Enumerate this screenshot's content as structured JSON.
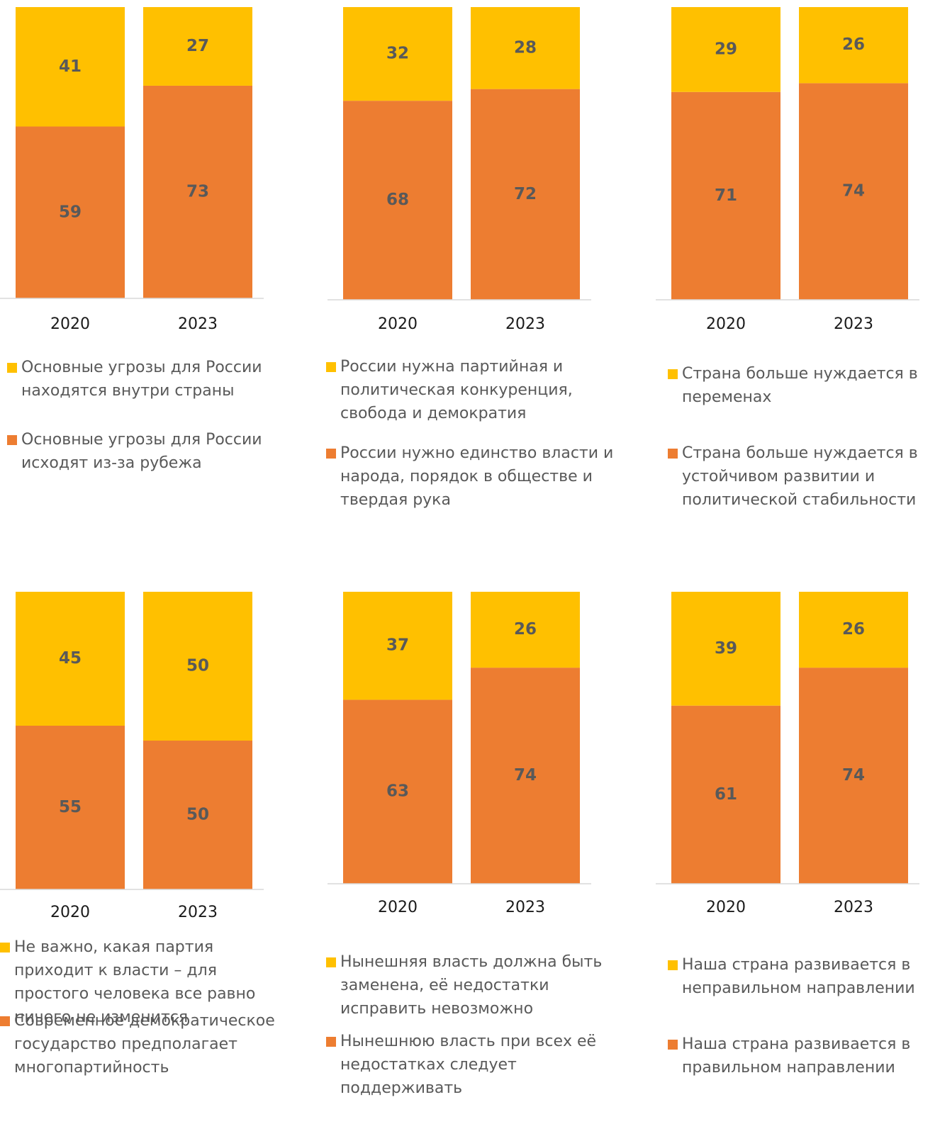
{
  "chart_data": [
    {
      "type": "bar",
      "stacked": true,
      "categories": [
        "2020",
        "2023"
      ],
      "ylim": [
        0,
        100
      ],
      "series": [
        {
          "name": "Основные угрозы для России исходят из-за рубежа",
          "color": "#ed7d31",
          "values": [
            59,
            73
          ]
        },
        {
          "name": "Основные угрозы для России находятся внутри страны",
          "color": "#ffc000",
          "values": [
            41,
            27
          ]
        }
      ]
    },
    {
      "type": "bar",
      "stacked": true,
      "categories": [
        "2020",
        "2023"
      ],
      "ylim": [
        0,
        100
      ],
      "series": [
        {
          "name": "России нужно единство власти и народа, порядок в обществе и твердая рука",
          "color": "#ed7d31",
          "values": [
            68,
            72
          ]
        },
        {
          "name": "России нужна партийная и политическая конкуренция, свобода и демократия",
          "color": "#ffc000",
          "values": [
            32,
            28
          ]
        }
      ]
    },
    {
      "type": "bar",
      "stacked": true,
      "categories": [
        "2020",
        "2023"
      ],
      "ylim": [
        0,
        100
      ],
      "series": [
        {
          "name": "Страна больше нуждается в устойчивом развитии и политической стабильности",
          "color": "#ed7d31",
          "values": [
            71,
            74
          ]
        },
        {
          "name": "Страна больше нуждается в переменах",
          "color": "#ffc000",
          "values": [
            29,
            26
          ]
        }
      ]
    },
    {
      "type": "bar",
      "stacked": true,
      "categories": [
        "2020",
        "2023"
      ],
      "ylim": [
        0,
        100
      ],
      "series": [
        {
          "name": "Современное демократическое государство предполагает многопартийность",
          "color": "#ed7d31",
          "values": [
            55,
            50
          ]
        },
        {
          "name": "Не важно, какая партия приходит к власти – для простого человека все равно ничего не изменится",
          "color": "#ffc000",
          "values": [
            45,
            50
          ]
        }
      ]
    },
    {
      "type": "bar",
      "stacked": true,
      "categories": [
        "2020",
        "2023"
      ],
      "ylim": [
        0,
        100
      ],
      "series": [
        {
          "name": "Нынешнюю власть при всех её недостатках следует поддерживать",
          "color": "#ed7d31",
          "values": [
            63,
            74
          ]
        },
        {
          "name": "Нынешняя власть должна быть заменена, её недостатки исправить невозможно",
          "color": "#ffc000",
          "values": [
            37,
            26
          ]
        }
      ]
    },
    {
      "type": "bar",
      "stacked": true,
      "categories": [
        "2020",
        "2023"
      ],
      "ylim": [
        0,
        100
      ],
      "series": [
        {
          "name": "Наша страна развивается в правильном направлении",
          "color": "#ed7d31",
          "values": [
            61,
            74
          ]
        },
        {
          "name": "Наша страна развивается в неправильном направлении",
          "color": "#ffc000",
          "values": [
            39,
            26
          ]
        }
      ]
    }
  ]
}
